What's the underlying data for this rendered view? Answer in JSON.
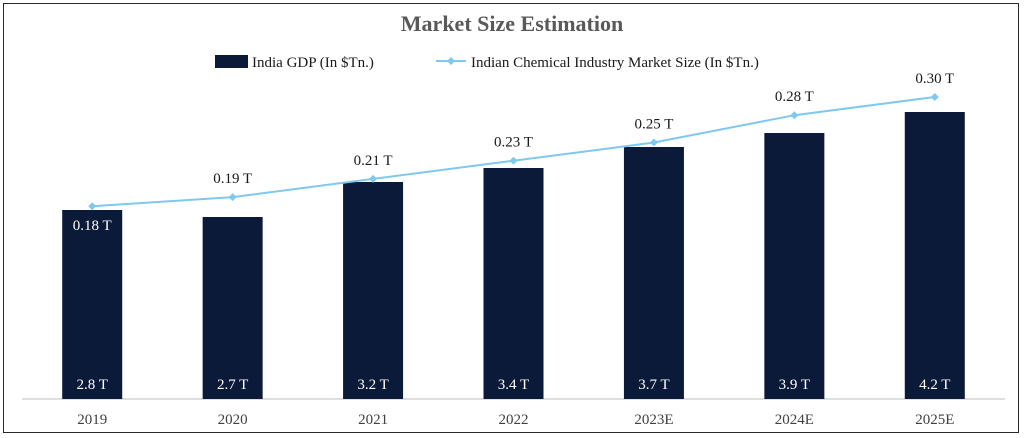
{
  "chart_data": {
    "type": "bar",
    "title": "Market Size Estimation",
    "categories": [
      "2019",
      "2020",
      "2021",
      "2022",
      "2023E",
      "2024E",
      "2025E"
    ],
    "series": [
      {
        "name": "India GDP (In $Tn.)",
        "type": "bar",
        "values": [
          2.8,
          2.7,
          3.2,
          3.4,
          3.7,
          3.9,
          4.2
        ],
        "labels": [
          "2.8 T",
          "2.7 T",
          "3.2 T",
          "3.4 T",
          "3.7 T",
          "3.9 T",
          "4.2 T"
        ],
        "color": "#0b1a38"
      },
      {
        "name": "Indian Chemical Industry Market Size (In $Tn.)",
        "type": "line",
        "values": [
          0.18,
          0.19,
          0.21,
          0.23,
          0.25,
          0.28,
          0.3
        ],
        "labels": [
          "0.18 T",
          "0.19 T",
          "0.21 T",
          "0.23 T",
          "0.25 T",
          "0.28 T",
          "0.30 T"
        ],
        "color": "#7fc8f0"
      }
    ],
    "xlabel": "",
    "ylabel": "",
    "grid": false,
    "legend": "top-center"
  }
}
